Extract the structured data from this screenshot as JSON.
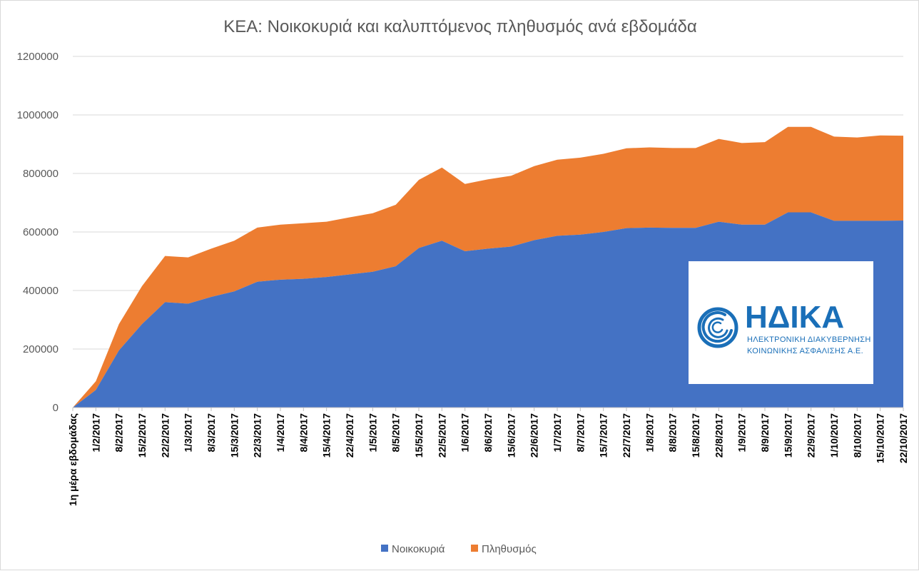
{
  "chart_data": {
    "type": "area",
    "stacked": true,
    "title": "ΚΕΑ: Νοικοκυριά και καλυπτόμενος πληθυσμός ανά εβδομάδα",
    "xlabel": "",
    "ylabel": "",
    "ylim": [
      0,
      1200000
    ],
    "yticks": [
      "0",
      "200000",
      "400000",
      "600000",
      "800000",
      "1000000",
      "1200000"
    ],
    "grid": true,
    "legend_position": "bottom",
    "categories": [
      "1η μέρα εβδομάδας",
      "1/2/2017",
      "8/2/2017",
      "15/2/2017",
      "22/2/2017",
      "1/3/2017",
      "8/3/2017",
      "15/3/2017",
      "22/3/2017",
      "1/4/2017",
      "8/4/2017",
      "15/4/2017",
      "22/4/2017",
      "1/5/2017",
      "8/5/2017",
      "15/5/2017",
      "22/5/2017",
      "1/6/2017",
      "8/6/2017",
      "15/6/2017",
      "22/6/2017",
      "1/7/2017",
      "8/7/2017",
      "15/7/2017",
      "22/7/2017",
      "1/8/2017",
      "8/8/2017",
      "15/8/2017",
      "22/8/2017",
      "1/9/2017",
      "8/9/2017",
      "15/9/2017",
      "22/9/2017",
      "1/10/2017",
      "8/10/2017",
      "15/10/2017",
      "22/10/2017"
    ],
    "series": [
      {
        "name": "Νοικοκυριά",
        "color": "#4472c4",
        "values": [
          0,
          60000,
          195000,
          285000,
          360000,
          355000,
          378000,
          397000,
          430000,
          437000,
          440000,
          446000,
          455000,
          464000,
          483000,
          545000,
          570000,
          534000,
          543000,
          550000,
          572000,
          587000,
          591000,
          600000,
          613000,
          615000,
          614000,
          614000,
          635000,
          625000,
          625000,
          667000,
          667000,
          638000,
          638000,
          638000,
          639000
        ]
      },
      {
        "name": "Πληθυσμός",
        "color": "#ed7d31",
        "values": [
          0,
          30000,
          90000,
          130000,
          158000,
          158000,
          165000,
          173000,
          185000,
          188000,
          190000,
          189000,
          195000,
          200000,
          210000,
          233000,
          250000,
          230000,
          237000,
          242000,
          253000,
          260000,
          263000,
          267000,
          273000,
          274000,
          273000,
          273000,
          283000,
          279000,
          282000,
          292000,
          292000,
          288000,
          285000,
          292000,
          290000
        ]
      }
    ]
  },
  "logo": {
    "name": "ΗΔΙΚΑ",
    "subtitle_line1": "ΗΛΕΚΤΡΟΝΙΚΗ ΔΙΑΚΥΒΕΡΝΗΣΗ",
    "subtitle_line2": "ΚΟΙΝΩΝΙΚΗΣ ΑΣΦΑΛΙΣΗΣ Α.Ε.",
    "color": "#1a6fb8"
  }
}
